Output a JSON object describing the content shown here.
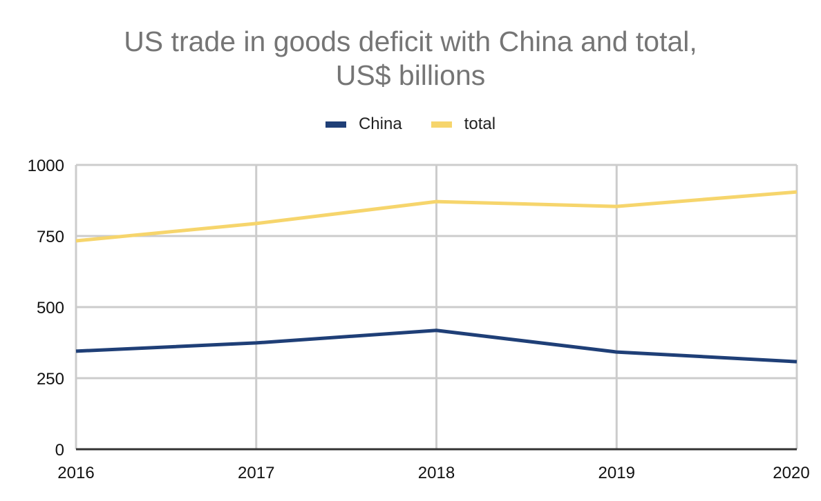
{
  "chart_data": {
    "type": "line",
    "title": "US trade in goods deficit with China and total,",
    "subtitle": "US$ billions",
    "xlabel": "",
    "ylabel": "",
    "x": [
      "2016",
      "2017",
      "2018",
      "2019",
      "2020"
    ],
    "ylim": [
      0,
      1000
    ],
    "yticks": [
      "0",
      "250",
      "500",
      "750",
      "1000"
    ],
    "grid": true,
    "legend_position": "top-center",
    "series": [
      {
        "name": "China",
        "color": "#1f3f77",
        "values": [
          345,
          374,
          418,
          342,
          308
        ]
      },
      {
        "name": "total",
        "color": "#f6d56c",
        "values": [
          733,
          794,
          871,
          854,
          905
        ]
      }
    ]
  }
}
